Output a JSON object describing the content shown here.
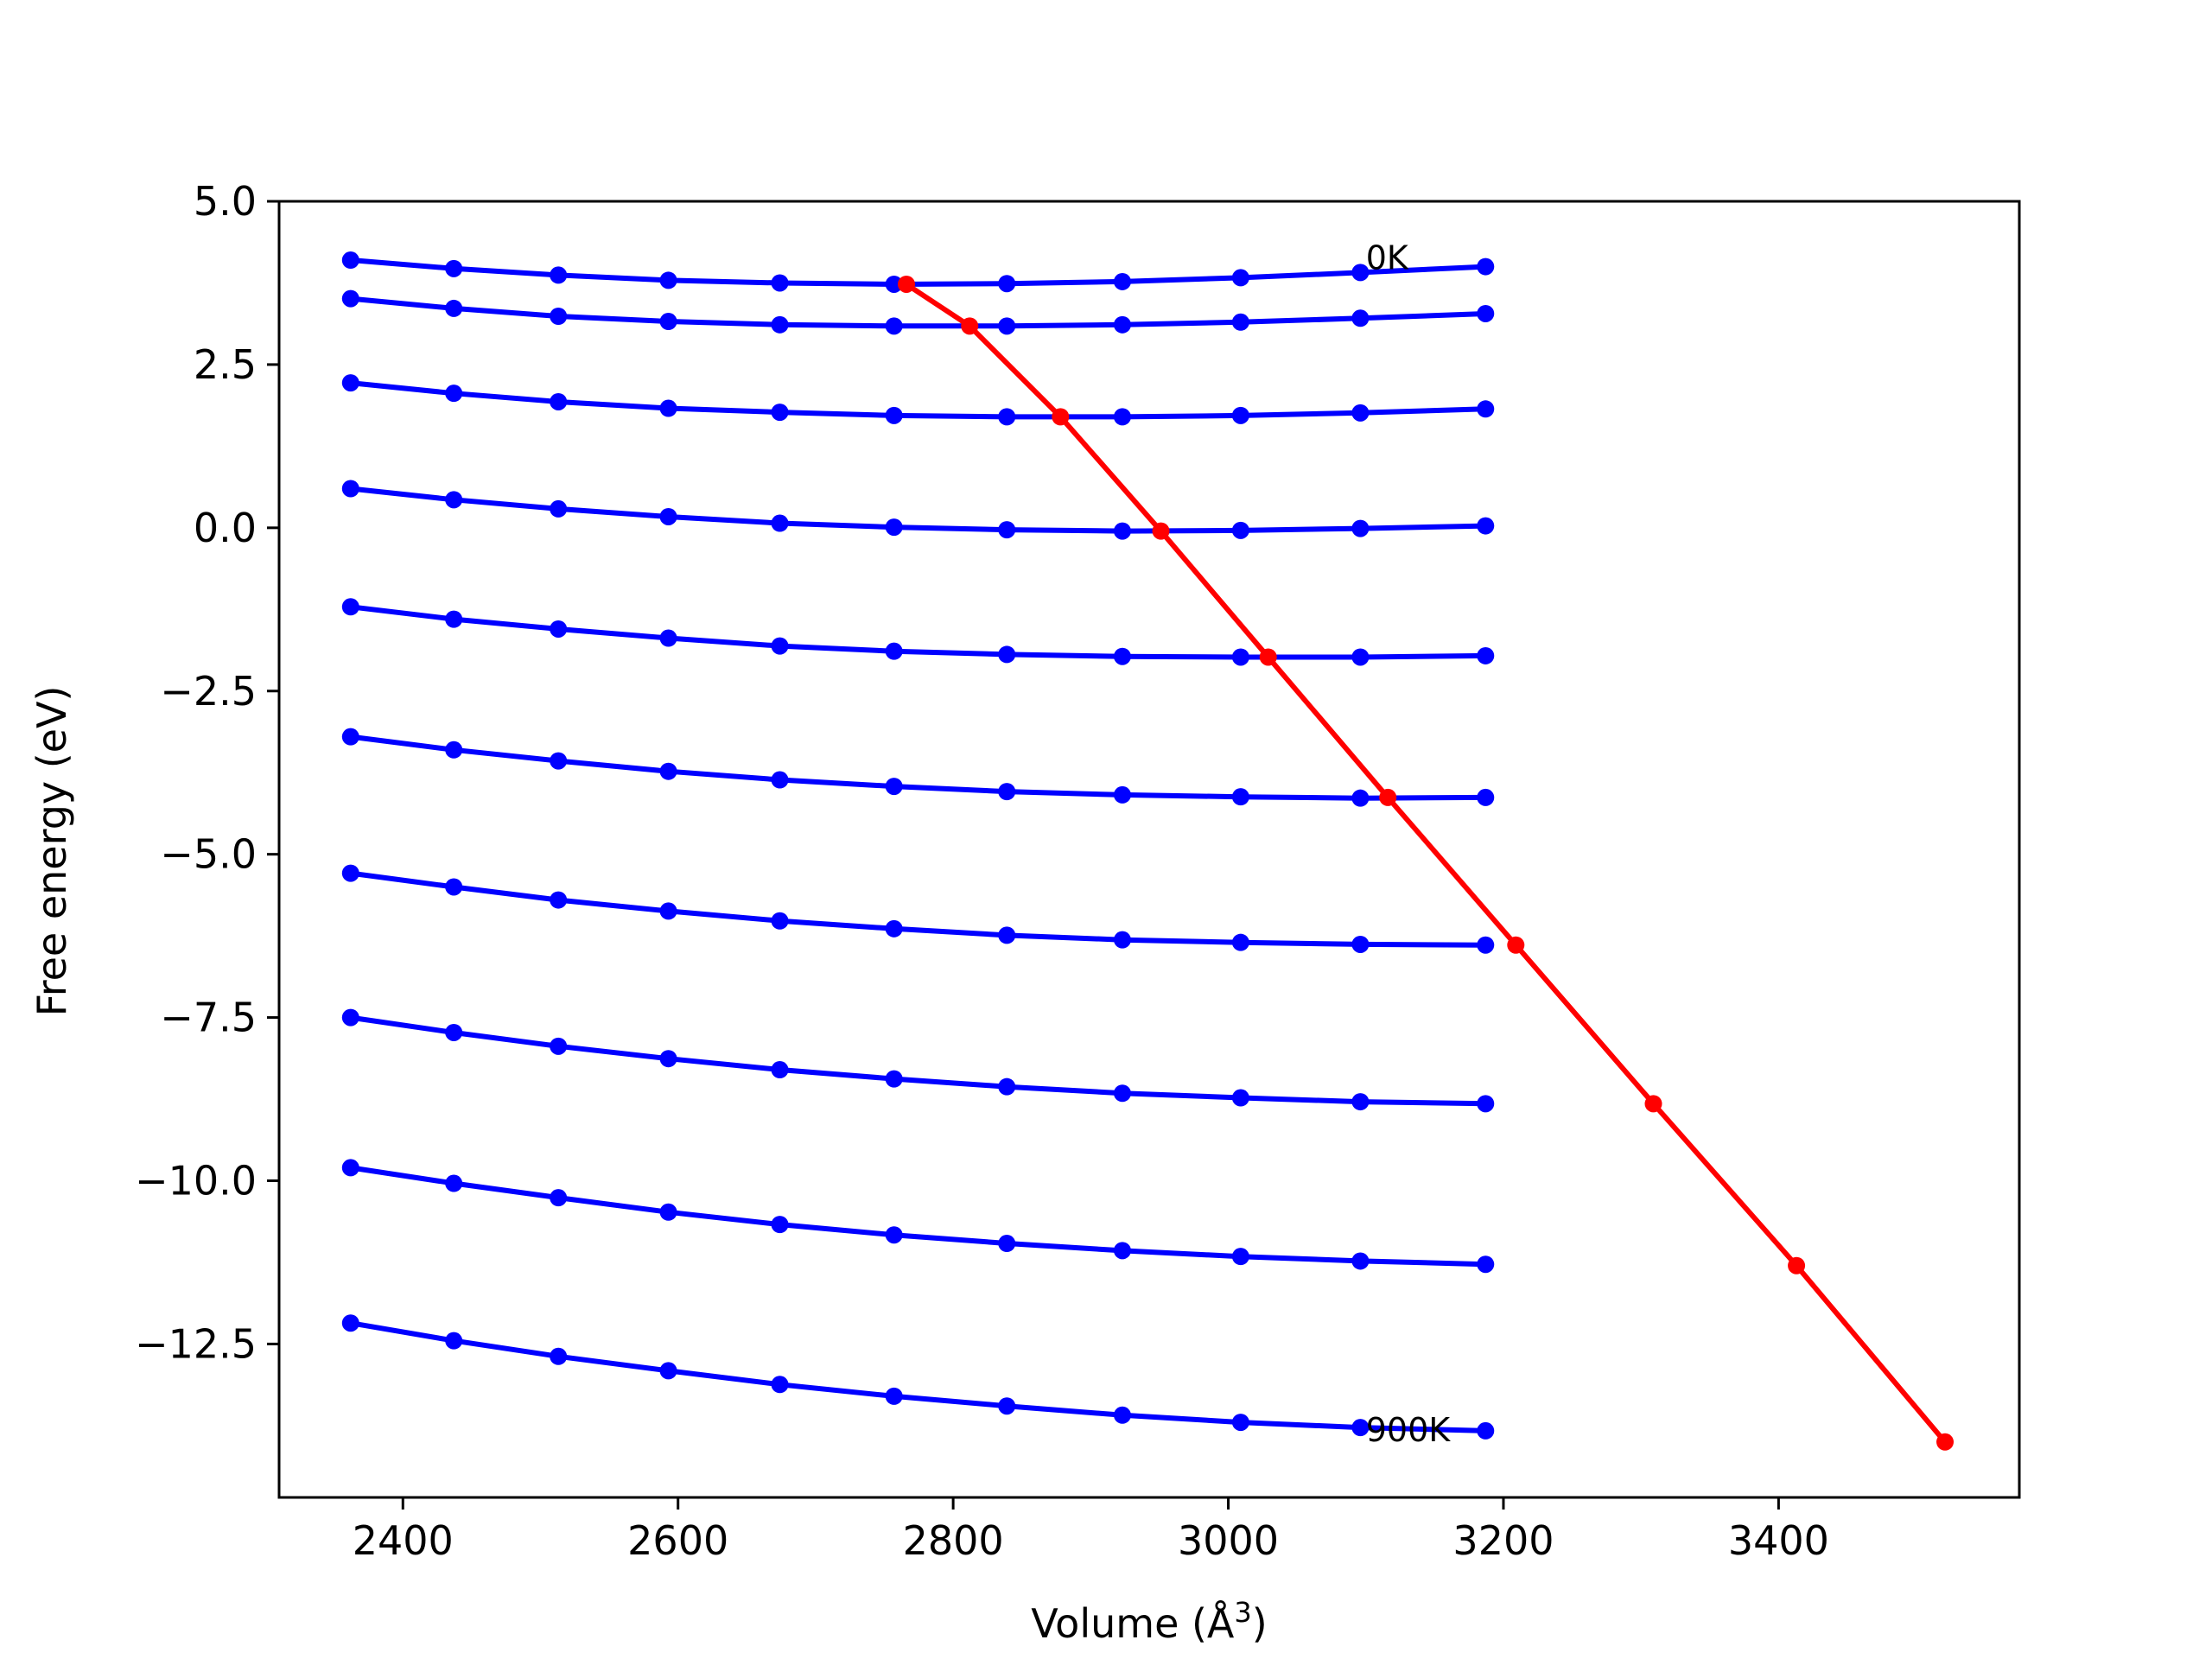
{
  "chart_data": {
    "type": "line",
    "title": "",
    "xlabel": "Volume (Å",
    "xlabel_sup": "3",
    "xlabel_close": ")",
    "ylabel": "Free energy (eV)",
    "xlim": [
      2310,
      3575
    ],
    "ylim": [
      -14.85,
      5.0
    ],
    "xticks": [
      2400,
      2600,
      2800,
      3000,
      3200,
      3400
    ],
    "yticks": [
      5.0,
      2.5,
      0.0,
      -2.5,
      -5.0,
      -7.5,
      -10.0,
      -12.5
    ],
    "xtick_labels": [
      "2400",
      "2600",
      "2800",
      "3000",
      "3200",
      "3400"
    ],
    "ytick_labels": [
      "5.0",
      "2.5",
      "0.0",
      "−2.5",
      "−5.0",
      "−7.5",
      "−10.0",
      "−12.5"
    ],
    "x": [
      2362,
      2437,
      2513,
      2593,
      2674,
      2757,
      2839,
      2923,
      3009,
      3096,
      3187
    ],
    "series": [
      {
        "color": "#0000ff",
        "values": [
          4.1,
          3.97,
          3.87,
          3.79,
          3.75,
          3.73,
          3.74,
          3.77,
          3.83,
          3.91,
          4.0
        ]
      },
      {
        "color": "#0000ff",
        "values": [
          3.51,
          3.36,
          3.24,
          3.16,
          3.11,
          3.09,
          3.09,
          3.11,
          3.15,
          3.21,
          3.28
        ]
      },
      {
        "color": "#0000ff",
        "values": [
          2.22,
          2.06,
          1.93,
          1.83,
          1.77,
          1.72,
          1.7,
          1.7,
          1.72,
          1.76,
          1.82
        ]
      },
      {
        "color": "#0000ff",
        "values": [
          0.6,
          0.43,
          0.29,
          0.17,
          0.07,
          0.01,
          -0.03,
          -0.05,
          -0.04,
          -0.01,
          0.03
        ]
      },
      {
        "color": "#0000ff",
        "values": [
          -1.21,
          -1.4,
          -1.55,
          -1.69,
          -1.81,
          -1.89,
          -1.94,
          -1.97,
          -1.98,
          -1.98,
          -1.96
        ]
      },
      {
        "color": "#0000ff",
        "values": [
          -3.2,
          -3.4,
          -3.57,
          -3.73,
          -3.86,
          -3.96,
          -4.04,
          -4.09,
          -4.12,
          -4.14,
          -4.13
        ]
      },
      {
        "color": "#0000ff",
        "values": [
          -5.29,
          -5.5,
          -5.7,
          -5.87,
          -6.02,
          -6.14,
          -6.24,
          -6.31,
          -6.35,
          -6.38,
          -6.39
        ]
      },
      {
        "color": "#0000ff",
        "values": [
          -7.5,
          -7.73,
          -7.94,
          -8.13,
          -8.3,
          -8.44,
          -8.56,
          -8.66,
          -8.73,
          -8.79,
          -8.82
        ]
      },
      {
        "color": "#0000ff",
        "values": [
          -9.8,
          -10.04,
          -10.26,
          -10.48,
          -10.67,
          -10.83,
          -10.96,
          -11.07,
          -11.16,
          -11.23,
          -11.28
        ]
      },
      {
        "color": "#0000ff",
        "values": [
          -12.18,
          -12.45,
          -12.69,
          -12.91,
          -13.12,
          -13.3,
          -13.45,
          -13.59,
          -13.7,
          -13.78,
          -13.83
        ]
      }
    ],
    "minimum_curve": {
      "color": "#ff0000",
      "x": [
        2766,
        2812,
        2878,
        2951,
        3029,
        3116,
        3209,
        3309,
        3413,
        3521
      ],
      "y": [
        3.73,
        3.09,
        1.7,
        -0.05,
        -1.98,
        -4.13,
        -6.39,
        -8.82,
        -11.3,
        -14.0
      ]
    },
    "annotations": [
      {
        "text": "0K",
        "x": 3100,
        "y": 4.12
      },
      {
        "text": "900K",
        "x": 3100,
        "y": -13.83
      }
    ],
    "grid": false,
    "legend": "none"
  }
}
